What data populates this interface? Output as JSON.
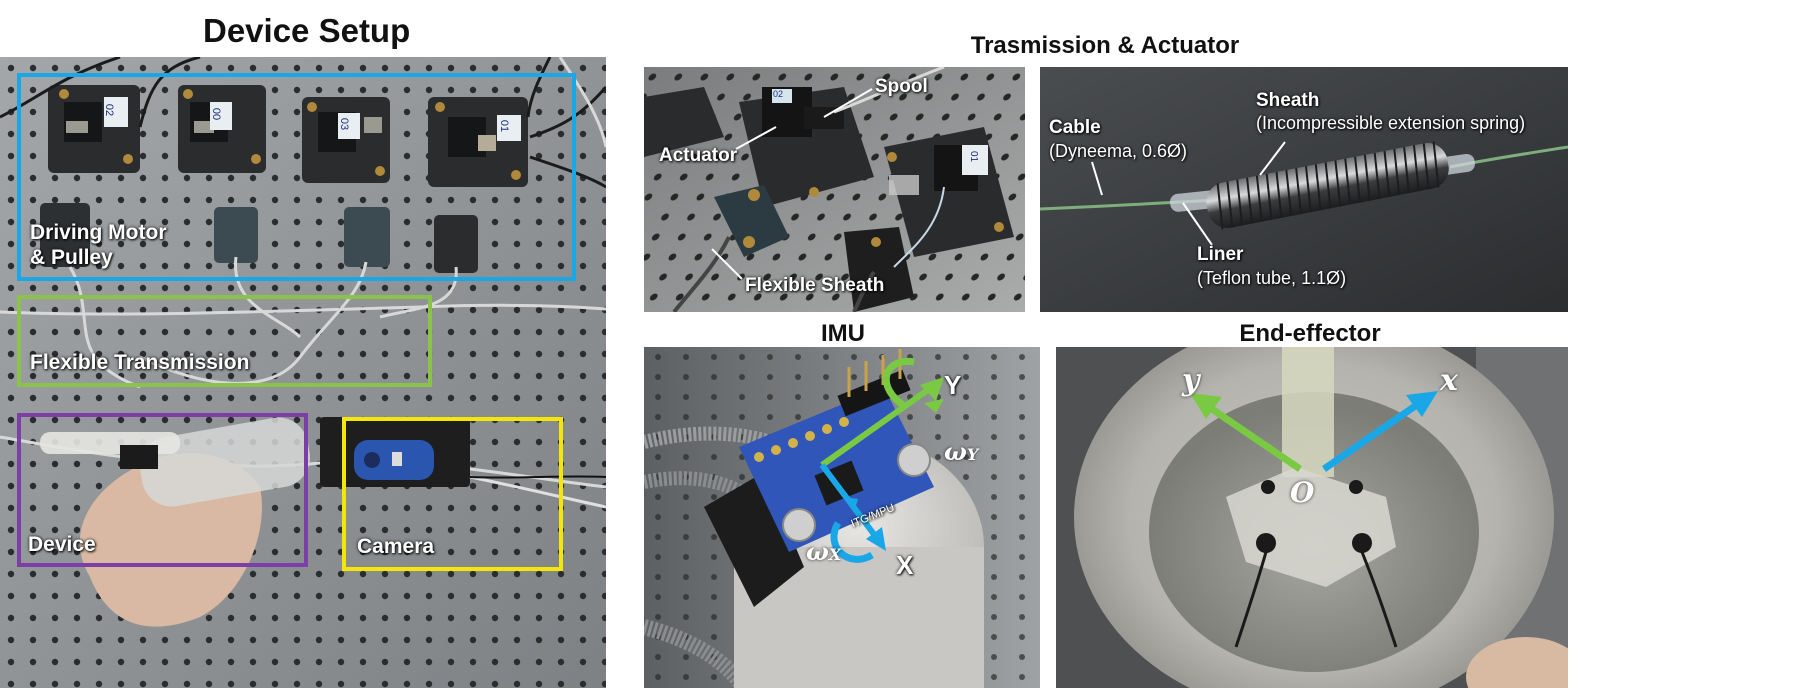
{
  "headings": {
    "device_setup": "Device Setup",
    "transmission": "Trasmission & Actuator",
    "imu": "IMU",
    "end_effector": "End-effector"
  },
  "setup_labels": {
    "driving_motor_line1": "Driving Motor",
    "driving_motor_line2": "& Pulley",
    "flexible_transmission": "Flexible Transmission",
    "device": "Device",
    "camera": "Camera"
  },
  "motor_tags": [
    "02",
    "00",
    "03",
    "01"
  ],
  "actuator_labels": {
    "spool": "Spool",
    "actuator": "Actuator",
    "flexible_sheath": "Flexible Sheath",
    "motor_tags": [
      "02",
      "01"
    ]
  },
  "cable_labels": {
    "cable": "Cable",
    "cable_detail": "(Dyneema, 0.6Ø)",
    "sheath": "Sheath",
    "sheath_detail": "(Incompressible extension spring)",
    "liner": "Liner",
    "liner_detail": "(Teflon tube, 1.1Ø)"
  },
  "imu_labels": {
    "axis_x": "X",
    "axis_y": "Y",
    "omega_x": "ω",
    "omega_x_sub": "X",
    "omega_y": "ω",
    "omega_y_sub": "Y",
    "board_text": "ITG/MPU"
  },
  "end_effector_labels": {
    "axis_x": "x",
    "axis_y": "y",
    "origin": "O"
  },
  "colors": {
    "motor_box": "#1aa7e8",
    "transmission_box": "#8bc34a",
    "device_box": "#7b3fa6",
    "camera_box": "#f5e60a",
    "axis_blue": "#1aa7e8",
    "axis_green": "#7ac943"
  }
}
